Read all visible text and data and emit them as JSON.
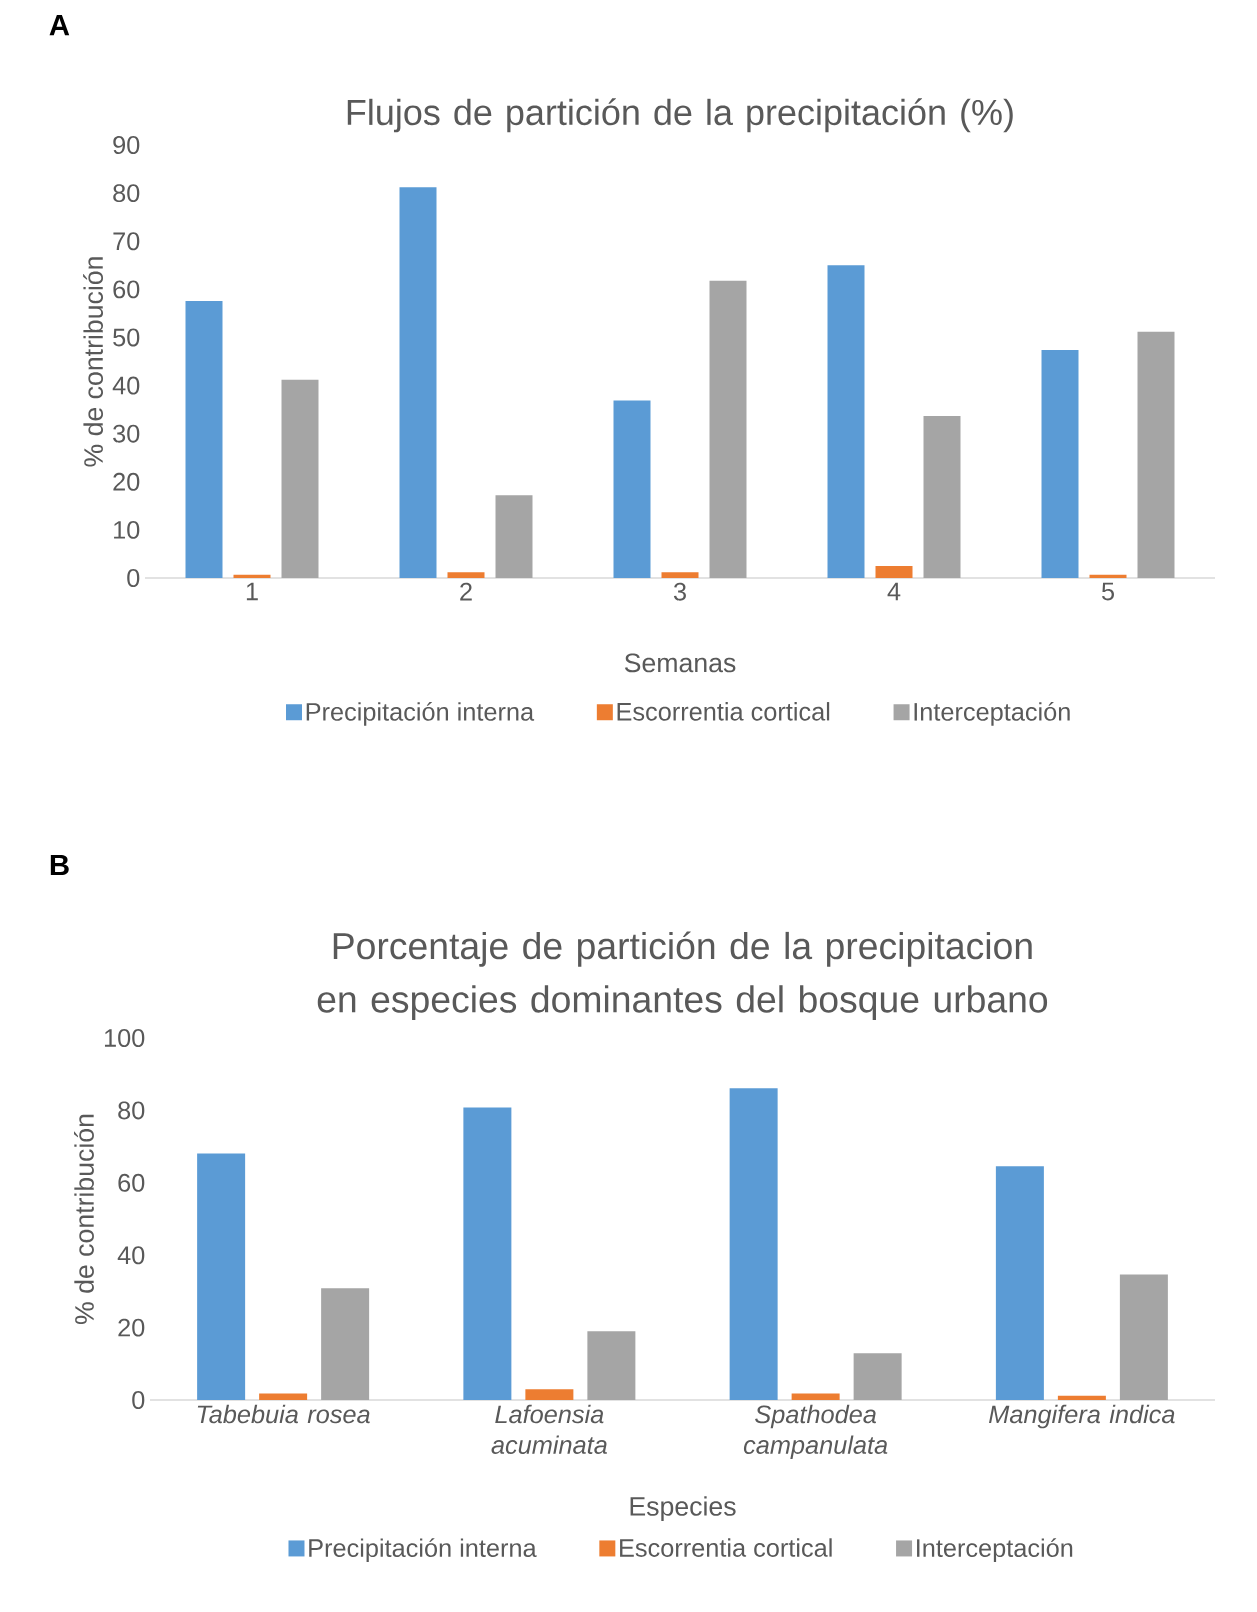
{
  "chart_data": [
    {
      "type": "bar",
      "title": "Flujos de partición de la precipitación (%)",
      "xlabel": "Semanas",
      "ylabel": "% de contribución",
      "annotations": [
        "A"
      ],
      "categories": [
        "1",
        "2",
        "3",
        "4",
        "5"
      ],
      "series": [
        {
          "name": "Precipitación interna",
          "color": "#5b9bd5",
          "values": [
            57.6,
            81.2,
            36.9,
            65.0,
            47.4
          ]
        },
        {
          "name": "Escorrentia cortical",
          "color": "#ed7d31",
          "values": [
            0.7,
            1.2,
            1.2,
            2.5,
            0.7
          ]
        },
        {
          "name": "Interceptación",
          "color": "#a5a5a5",
          "values": [
            41.2,
            17.2,
            61.8,
            33.7,
            51.2
          ]
        }
      ],
      "ylim": [
        0,
        90
      ],
      "yticks": [
        0,
        10,
        20,
        30,
        40,
        50,
        60,
        70,
        80,
        90
      ],
      "grid": false,
      "legend": "bottom"
    },
    {
      "type": "bar",
      "title": "Porcentaje de partición de la precipitacion en especies dominantes del bosque urbano",
      "xlabel": "Especies",
      "ylabel": "% de contribución",
      "annotations": [
        "B"
      ],
      "categories": [
        "Tabebuia rosea",
        "Lafoensia acuminata",
        "Spathodea campanulata",
        "Mangifera indica"
      ],
      "series": [
        {
          "name": "Precipitación interna",
          "color": "#5b9bd5",
          "values": [
            68.1,
            80.8,
            86.1,
            64.6
          ]
        },
        {
          "name": "Escorrentia cortical",
          "color": "#ed7d31",
          "values": [
            1.8,
            3.0,
            1.8,
            1.2
          ]
        },
        {
          "name": "Interceptación",
          "color": "#a5a5a5",
          "values": [
            30.9,
            19.0,
            12.9,
            34.7
          ]
        }
      ],
      "ylim": [
        0,
        100
      ],
      "yticks": [
        0,
        20,
        40,
        60,
        80,
        100
      ],
      "grid": false,
      "legend": "bottom"
    }
  ]
}
